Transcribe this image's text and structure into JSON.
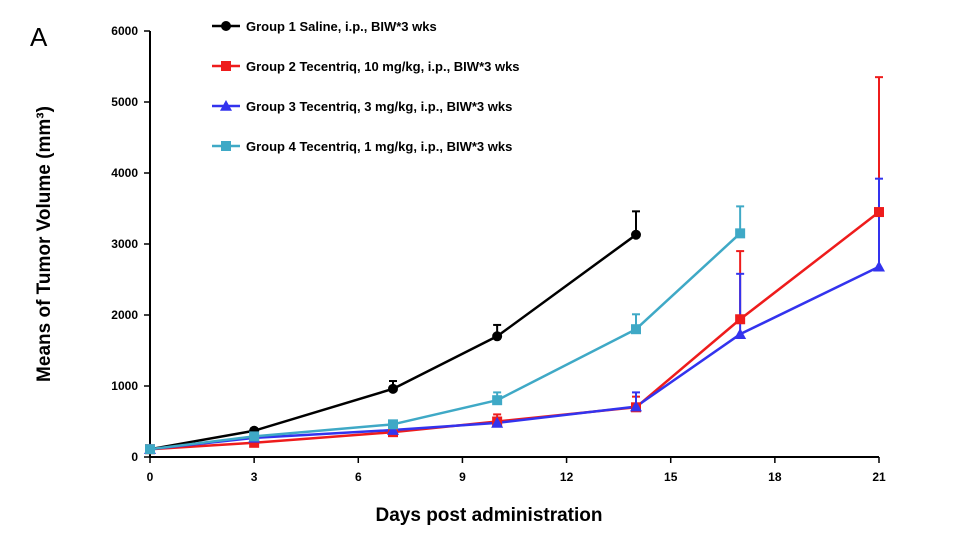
{
  "chart_data": {
    "type": "line",
    "panel_label": "A",
    "xlabel": "Days post administration",
    "ylabel": "Means of Tumor Volume (mm³)",
    "xlim": [
      0,
      21
    ],
    "ylim": [
      0,
      6000
    ],
    "xticks": [
      0,
      3,
      6,
      9,
      12,
      15,
      18,
      21
    ],
    "yticks": [
      0,
      1000,
      2000,
      3000,
      4000,
      5000,
      6000
    ],
    "grid": false,
    "legend_position": "top-left",
    "series": [
      {
        "name": "Group 1 Saline, i.p., BIW*3 wks",
        "color": "#000000",
        "marker": "circle",
        "x": [
          0,
          3,
          7,
          10,
          14
        ],
        "y": [
          110,
          370,
          960,
          1700,
          3130
        ],
        "error": [
          0,
          30,
          110,
          160,
          330
        ]
      },
      {
        "name": "Group 2 Tecentriq, 10 mg/kg, i.p., BIW*3 wks",
        "color": "#ee1c1c",
        "marker": "square",
        "x": [
          0,
          3,
          7,
          10,
          14,
          17,
          21
        ],
        "y": [
          110,
          200,
          350,
          500,
          700,
          1940,
          3450
        ],
        "error": [
          0,
          20,
          50,
          100,
          150,
          960,
          1900
        ]
      },
      {
        "name": "Group 3 Tecentriq, 3 mg/kg, i.p., BIW*3 wks",
        "color": "#3333ee",
        "marker": "triangle",
        "x": [
          0,
          3,
          7,
          10,
          14,
          17,
          21
        ],
        "y": [
          110,
          270,
          380,
          480,
          710,
          1730,
          2680
        ],
        "error": [
          0,
          20,
          40,
          60,
          200,
          850,
          1240
        ]
      },
      {
        "name": "Group 4 Tecentriq, 1 mg/kg, i.p., BIW*3 wks",
        "color": "#3fa9c6",
        "marker": "square",
        "x": [
          0,
          3,
          7,
          10,
          14,
          17
        ],
        "y": [
          110,
          290,
          460,
          800,
          1800,
          3150
        ],
        "error": [
          0,
          25,
          50,
          110,
          210,
          380
        ]
      }
    ]
  }
}
